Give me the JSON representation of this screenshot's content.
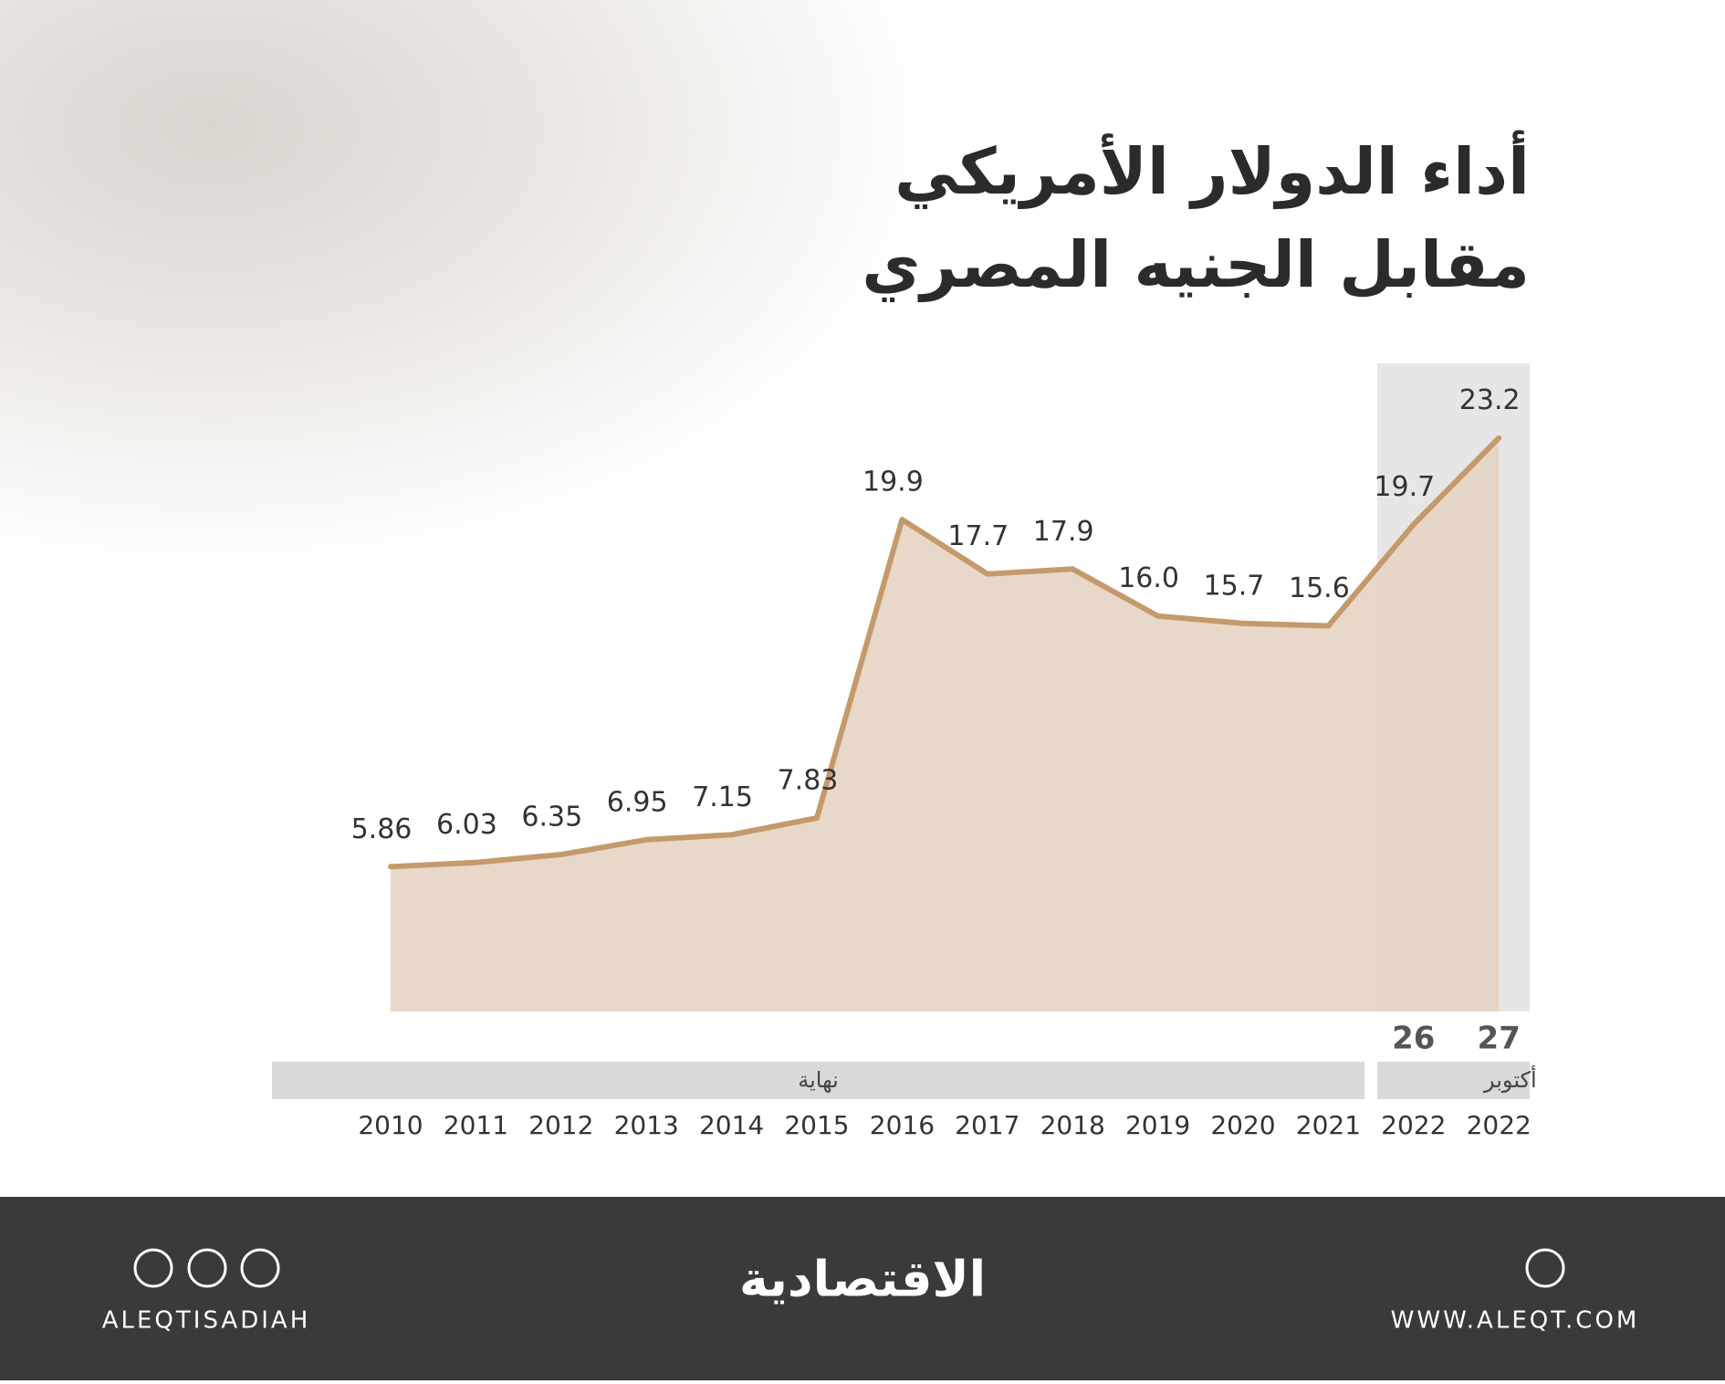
{
  "chart_data": {
    "type": "line",
    "title": [
      "أداء الدولار الأمريكي",
      "مقابل الجنيه المصري"
    ],
    "categories": [
      "2010",
      "2011",
      "2012",
      "2013",
      "2014",
      "2015",
      "2016",
      "2017",
      "2018",
      "2019",
      "2020",
      "2021",
      "2022",
      "2022"
    ],
    "day_labels": [
      null,
      null,
      null,
      null,
      null,
      null,
      null,
      null,
      null,
      null,
      null,
      null,
      "26",
      "27"
    ],
    "period_labels": [
      "نهاية",
      "أكتوبر"
    ],
    "values": [
      5.86,
      6.03,
      6.35,
      6.95,
      7.15,
      7.83,
      19.9,
      17.7,
      17.9,
      16.0,
      15.7,
      15.6,
      19.7,
      23.2
    ],
    "value_labels": [
      "5.86",
      "6.03",
      "6.35",
      "6.95",
      "7.15",
      "7.83",
      "19.9",
      "17.7",
      "17.9",
      "16.0",
      "15.7",
      "15.6",
      "19.7",
      "23.2"
    ],
    "color": "#c49a6c",
    "ylim": [
      0,
      25
    ]
  },
  "footer": {
    "logo": "الاقتصادية",
    "social": "ALEQTISADIAH",
    "website": "WWW.ALEQT.COM"
  }
}
